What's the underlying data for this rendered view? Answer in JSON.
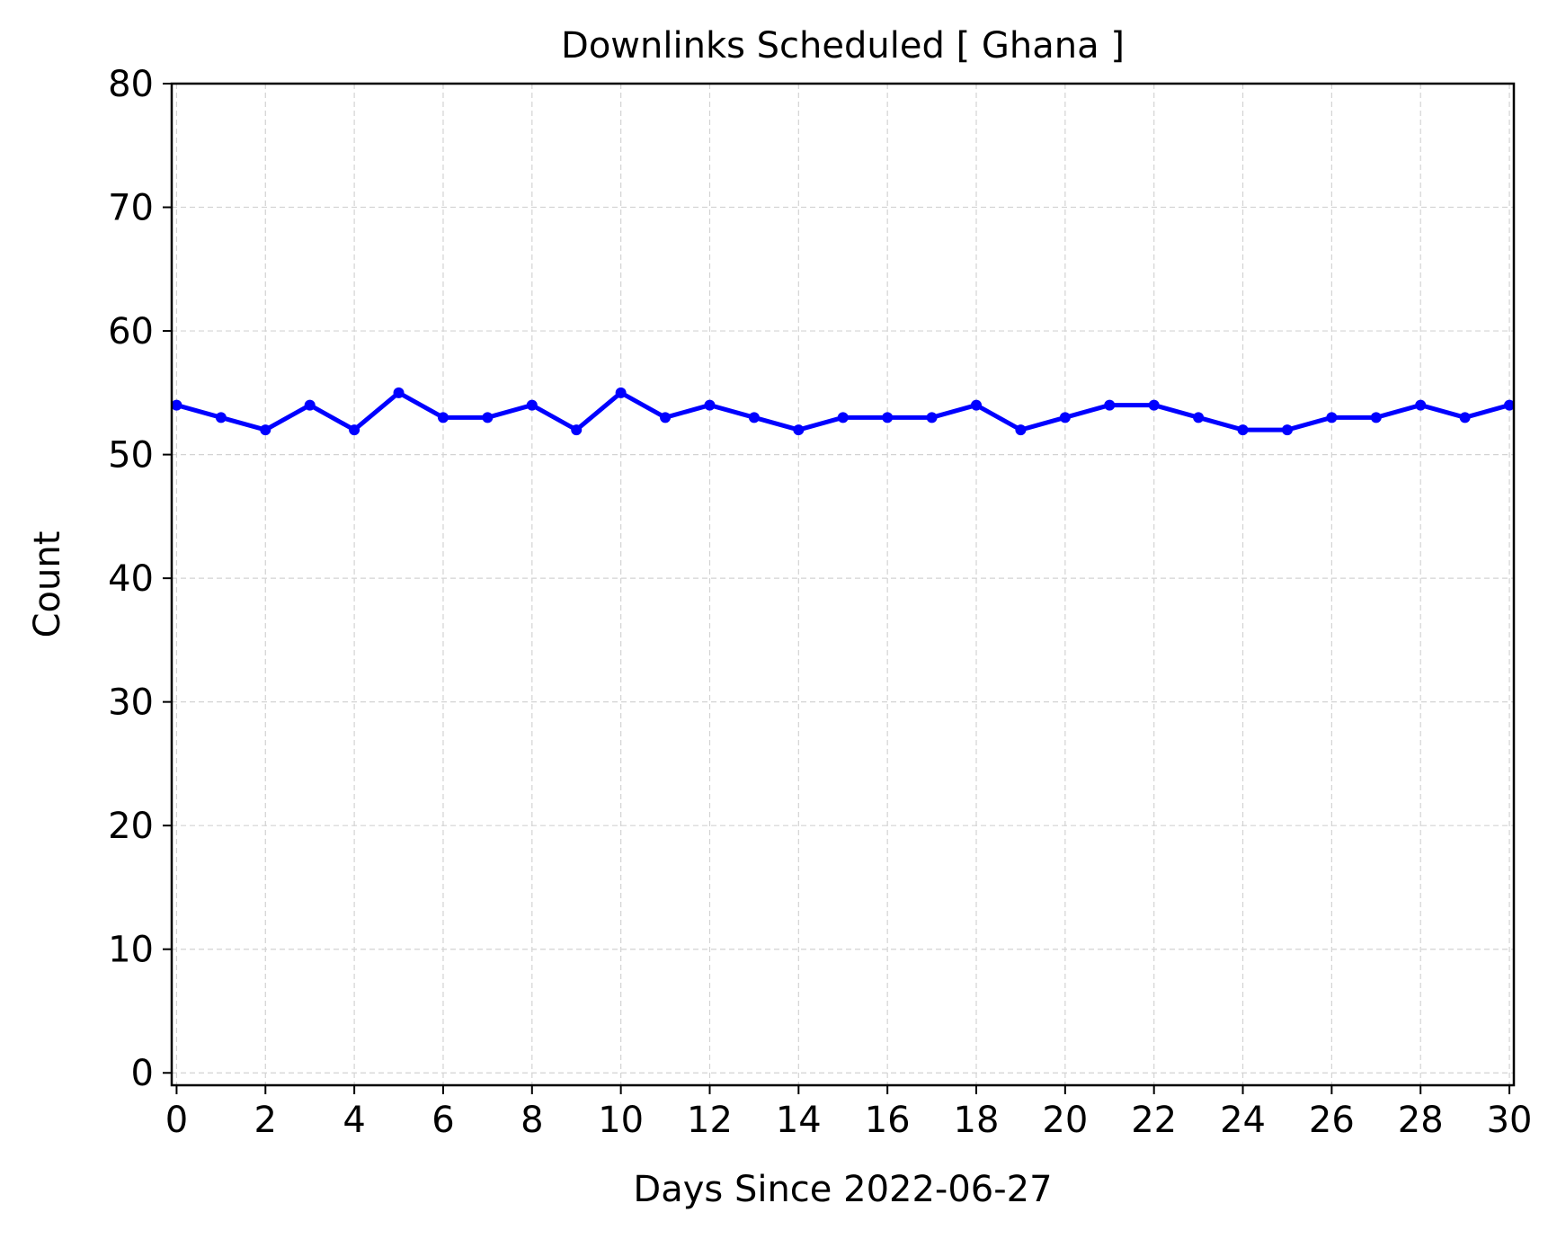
{
  "chart_data": {
    "type": "line",
    "title": "Downlinks Scheduled [ Ghana ]",
    "xlabel": "Days Since 2022-06-27",
    "ylabel": "Count",
    "xlim": [
      0,
      30
    ],
    "ylim": [
      -1,
      80
    ],
    "xticks": [
      0,
      2,
      4,
      6,
      8,
      10,
      12,
      14,
      16,
      18,
      20,
      22,
      24,
      26,
      28,
      30
    ],
    "yticks": [
      0,
      10,
      20,
      30,
      40,
      50,
      60,
      70,
      80
    ],
    "grid": true,
    "series": [
      {
        "color": "#0000ff",
        "marker": "circle",
        "x": [
          0,
          1,
          2,
          3,
          4,
          5,
          6,
          7,
          8,
          9,
          10,
          11,
          12,
          13,
          14,
          15,
          16,
          17,
          18,
          19,
          20,
          21,
          22,
          23,
          24,
          25,
          26,
          27,
          28,
          29,
          30
        ],
        "y": [
          54,
          53,
          52,
          54,
          52,
          55,
          53,
          53,
          54,
          52,
          55,
          53,
          54,
          53,
          52,
          53,
          53,
          53,
          54,
          52,
          53,
          54,
          54,
          53,
          52,
          52,
          53,
          53,
          54,
          53,
          54
        ]
      }
    ]
  }
}
